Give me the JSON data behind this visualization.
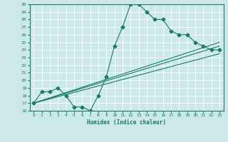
{
  "xlabel": "Humidex (Indice chaleur)",
  "ylabel": "",
  "background_color": "#cce8e8",
  "grid_color": "#ffffff",
  "line_color": "#1a7a6a",
  "xlim": [
    -0.5,
    23.5
  ],
  "ylim": [
    16,
    30
  ],
  "xticks": [
    0,
    1,
    2,
    3,
    4,
    5,
    6,
    7,
    8,
    9,
    10,
    11,
    12,
    13,
    14,
    15,
    16,
    17,
    18,
    19,
    20,
    21,
    22,
    23
  ],
  "yticks": [
    16,
    17,
    18,
    19,
    20,
    21,
    22,
    23,
    24,
    25,
    26,
    27,
    28,
    29,
    30
  ],
  "series1_x": [
    0,
    1,
    2,
    3,
    4,
    5,
    6,
    7,
    8,
    9,
    10,
    11,
    12,
    13,
    14,
    15,
    16,
    17,
    18,
    19,
    20,
    21,
    22,
    23
  ],
  "series1_y": [
    17.0,
    18.5,
    18.5,
    19.0,
    18.0,
    16.5,
    16.5,
    16.0,
    18.0,
    20.5,
    24.5,
    27.0,
    30.0,
    30.0,
    29.0,
    28.0,
    28.0,
    26.5,
    26.0,
    26.0,
    25.0,
    24.5,
    24.0,
    24.0
  ],
  "series2_x": [
    0,
    23
  ],
  "series2_y": [
    17.0,
    25.0
  ],
  "series3_x": [
    0,
    23
  ],
  "series3_y": [
    17.0,
    24.5
  ],
  "series4_x": [
    0,
    23
  ],
  "series4_y": [
    17.0,
    23.5
  ]
}
